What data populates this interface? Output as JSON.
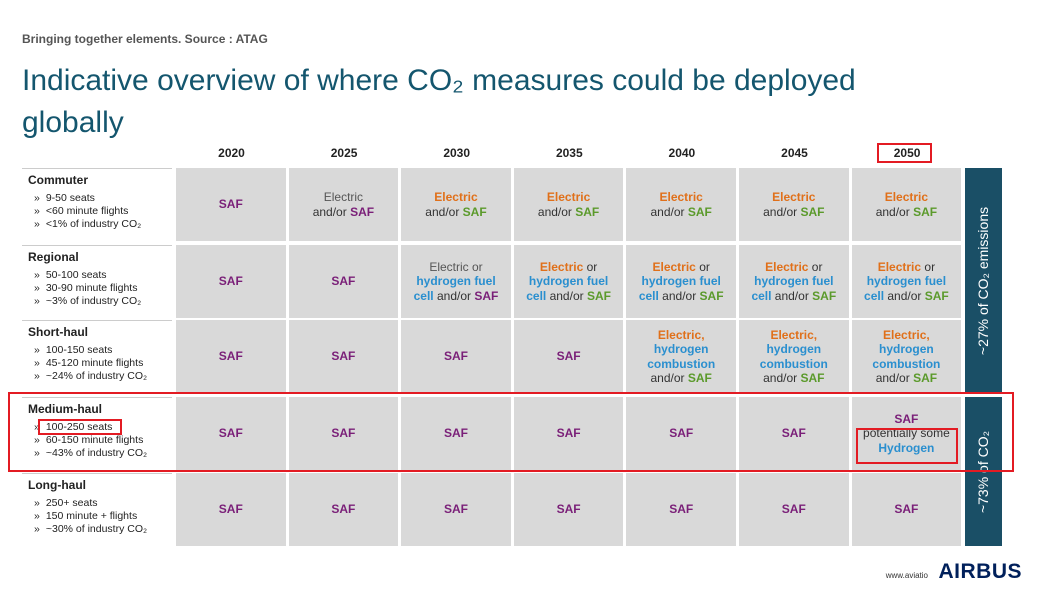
{
  "header": {
    "subtitle": "Bringing together elements. Source : ATAG",
    "title": "Indicative overview of where CO₂ measures could be deployed globally"
  },
  "table": {
    "years": [
      "2020",
      "2025",
      "2030",
      "2035",
      "2040",
      "2045",
      "2050"
    ],
    "bullet_marker": "»",
    "rows": [
      {
        "name": "Commuter",
        "bullets": [
          "9-50 seats",
          "<60 minute flights",
          "<1% of industry CO₂"
        ],
        "cells": [
          [
            [
              [
                "SAF",
                "p"
              ]
            ]
          ],
          [
            [
              [
                "Electric",
                "g"
              ]
            ],
            [
              [
                "and/or ",
                "n"
              ],
              [
                "SAF",
                "p"
              ]
            ]
          ],
          [
            [
              [
                "Electric",
                "o"
              ]
            ],
            [
              [
                "and/or ",
                "n"
              ],
              [
                "SAF",
                "gr"
              ]
            ]
          ],
          [
            [
              [
                "Electric",
                "o"
              ]
            ],
            [
              [
                "and/or ",
                "n"
              ],
              [
                "SAF",
                "gr"
              ]
            ]
          ],
          [
            [
              [
                "Electric",
                "o"
              ]
            ],
            [
              [
                "and/or ",
                "n"
              ],
              [
                "SAF",
                "gr"
              ]
            ]
          ],
          [
            [
              [
                "Electric",
                "o"
              ]
            ],
            [
              [
                "and/or ",
                "n"
              ],
              [
                "SAF",
                "gr"
              ]
            ]
          ],
          [
            [
              [
                "Electric",
                "o"
              ]
            ],
            [
              [
                "and/or ",
                "n"
              ],
              [
                "SAF",
                "gr"
              ]
            ]
          ]
        ]
      },
      {
        "name": "Regional",
        "bullets": [
          "50-100 seats",
          "30-90 minute flights",
          "~3% of industry CO₂"
        ],
        "cells": [
          [
            [
              [
                "SAF",
                "p"
              ]
            ]
          ],
          [
            [
              [
                "SAF",
                "p"
              ]
            ]
          ],
          [
            [
              [
                "Electric or",
                "g"
              ]
            ],
            [
              [
                "hydrogen fuel",
                "b"
              ]
            ],
            [
              [
                "cell",
                "b"
              ],
              [
                " and/or ",
                "n"
              ],
              [
                "SAF",
                "p"
              ]
            ]
          ],
          [
            [
              [
                "Electric",
                "o"
              ],
              [
                " or",
                "n"
              ]
            ],
            [
              [
                "hydrogen fuel",
                "b"
              ]
            ],
            [
              [
                "cell",
                "b"
              ],
              [
                " and/or ",
                "n"
              ],
              [
                "SAF",
                "gr"
              ]
            ]
          ],
          [
            [
              [
                "Electric",
                "o"
              ],
              [
                " or",
                "n"
              ]
            ],
            [
              [
                "hydrogen fuel",
                "b"
              ]
            ],
            [
              [
                "cell",
                "b"
              ],
              [
                " and/or ",
                "n"
              ],
              [
                "SAF",
                "gr"
              ]
            ]
          ],
          [
            [
              [
                "Electric",
                "o"
              ],
              [
                " or",
                "n"
              ]
            ],
            [
              [
                "hydrogen fuel",
                "b"
              ]
            ],
            [
              [
                "cell",
                "b"
              ],
              [
                " and/or ",
                "n"
              ],
              [
                "SAF",
                "gr"
              ]
            ]
          ],
          [
            [
              [
                "Electric",
                "o"
              ],
              [
                " or",
                "n"
              ]
            ],
            [
              [
                "hydrogen fuel",
                "b"
              ]
            ],
            [
              [
                "cell",
                "b"
              ],
              [
                " and/or ",
                "n"
              ],
              [
                "SAF",
                "gr"
              ]
            ]
          ]
        ]
      },
      {
        "name": "Short-haul",
        "bullets": [
          "100-150 seats",
          "45-120 minute flights",
          "~24% of industry CO₂"
        ],
        "cells": [
          [
            [
              [
                "SAF",
                "p"
              ]
            ]
          ],
          [
            [
              [
                "SAF",
                "p"
              ]
            ]
          ],
          [
            [
              [
                "SAF",
                "p"
              ]
            ]
          ],
          [
            [
              [
                "SAF",
                "p"
              ]
            ]
          ],
          [
            [
              [
                "Electric,",
                "o"
              ]
            ],
            [
              [
                "hydrogen",
                "b"
              ]
            ],
            [
              [
                "combustion",
                "b"
              ]
            ],
            [
              [
                "and/or ",
                "n"
              ],
              [
                "SAF",
                "gr"
              ]
            ]
          ],
          [
            [
              [
                "Electric,",
                "o"
              ]
            ],
            [
              [
                "hydrogen",
                "b"
              ]
            ],
            [
              [
                "combustion",
                "b"
              ]
            ],
            [
              [
                "and/or ",
                "n"
              ],
              [
                "SAF",
                "gr"
              ]
            ]
          ],
          [
            [
              [
                "Electric,",
                "o"
              ]
            ],
            [
              [
                "hydrogen",
                "b"
              ]
            ],
            [
              [
                "combustion",
                "b"
              ]
            ],
            [
              [
                "and/or ",
                "n"
              ],
              [
                "SAF",
                "gr"
              ]
            ]
          ]
        ]
      },
      {
        "name": "Medium-haul",
        "bullets": [
          "100-250 seats",
          "60-150 minute flights",
          "~43% of industry CO₂"
        ],
        "cells": [
          [
            [
              [
                "SAF",
                "p"
              ]
            ]
          ],
          [
            [
              [
                "SAF",
                "p"
              ]
            ]
          ],
          [
            [
              [
                "SAF",
                "p"
              ]
            ]
          ],
          [
            [
              [
                "SAF",
                "p"
              ]
            ]
          ],
          [
            [
              [
                "SAF",
                "p"
              ]
            ]
          ],
          [
            [
              [
                "SAF",
                "p"
              ]
            ]
          ],
          [
            [
              [
                "SAF",
                "p"
              ]
            ],
            [
              [
                "potentially some",
                "n"
              ]
            ],
            [
              [
                "Hydrogen",
                "b"
              ]
            ]
          ]
        ]
      },
      {
        "name": "Long-haul",
        "bullets": [
          "250+ seats",
          "150 minute + flights",
          "~30% of industry CO₂"
        ],
        "cells": [
          [
            [
              [
                "SAF",
                "p"
              ]
            ]
          ],
          [
            [
              [
                "SAF",
                "p"
              ]
            ]
          ],
          [
            [
              [
                "SAF",
                "p"
              ]
            ]
          ],
          [
            [
              [
                "SAF",
                "p"
              ]
            ]
          ],
          [
            [
              [
                "SAF",
                "p"
              ]
            ]
          ],
          [
            [
              [
                "SAF",
                "p"
              ]
            ]
          ],
          [
            [
              [
                "SAF",
                "p"
              ]
            ]
          ]
        ]
      }
    ],
    "bands": [
      "~27% of CO₂ emissions",
      "~73% of CO₂"
    ]
  },
  "footer": {
    "url": "www.aviatio",
    "logo": "AIRBUS"
  }
}
